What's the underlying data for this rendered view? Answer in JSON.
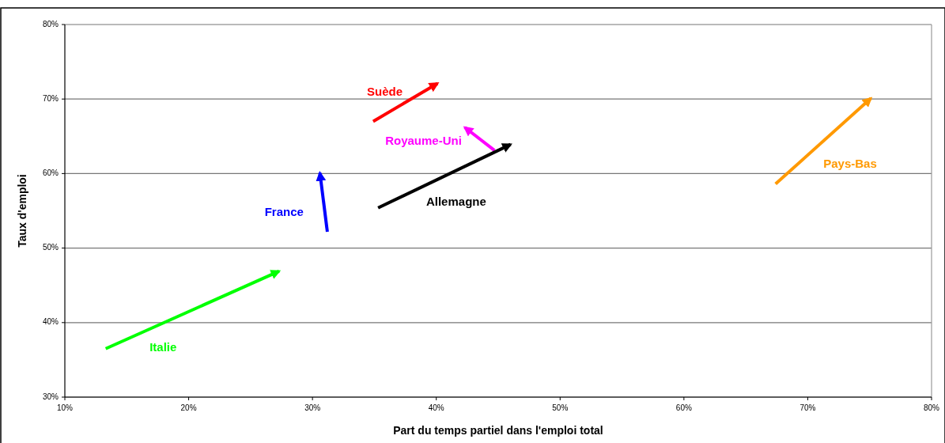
{
  "chart_data": {
    "type": "line",
    "xlabel": "Part du temps partiel dans l'emploi total",
    "ylabel": "Taux d'emploi",
    "xlim": [
      10,
      80
    ],
    "ylim": [
      30,
      80
    ],
    "xticks": [
      {
        "value": 10,
        "label": "10%"
      },
      {
        "value": 20,
        "label": "20%"
      },
      {
        "value": 30,
        "label": "30%"
      },
      {
        "value": 40,
        "label": "40%"
      },
      {
        "value": 50,
        "label": "50%"
      },
      {
        "value": 60,
        "label": "60%"
      },
      {
        "value": 70,
        "label": "70%"
      },
      {
        "value": 80,
        "label": "80%"
      }
    ],
    "yticks": [
      {
        "value": 30,
        "label": "30%"
      },
      {
        "value": 40,
        "label": "40%"
      },
      {
        "value": 50,
        "label": "50%"
      },
      {
        "value": 60,
        "label": "60%"
      },
      {
        "value": 70,
        "label": "70%"
      },
      {
        "value": 80,
        "label": "80%"
      }
    ],
    "grid": "y",
    "marker": "none",
    "line_style": "solid",
    "series": [
      {
        "name": "Suède",
        "color": "#ff0000",
        "x": [
          34.9,
          40.1
        ],
        "values": [
          67.0,
          72.1
        ]
      },
      {
        "name": "Royaume-Uni",
        "color": "#ff00ff",
        "x": [
          44.7,
          42.3
        ],
        "values": [
          63.1,
          66.2
        ]
      },
      {
        "name": "Allemagne",
        "color": "#000000",
        "x": [
          35.3,
          46.0
        ],
        "values": [
          55.4,
          63.9
        ]
      },
      {
        "name": "France",
        "color": "#0000ff",
        "x": [
          31.2,
          30.6
        ],
        "values": [
          52.2,
          60.1
        ]
      },
      {
        "name": "Pays-Bas",
        "color": "#ff9900",
        "x": [
          67.4,
          75.1
        ],
        "values": [
          58.6,
          70.1
        ]
      },
      {
        "name": "Italie",
        "color": "#00ff00",
        "x": [
          13.3,
          27.3
        ],
        "values": [
          36.5,
          46.9
        ]
      }
    ]
  }
}
